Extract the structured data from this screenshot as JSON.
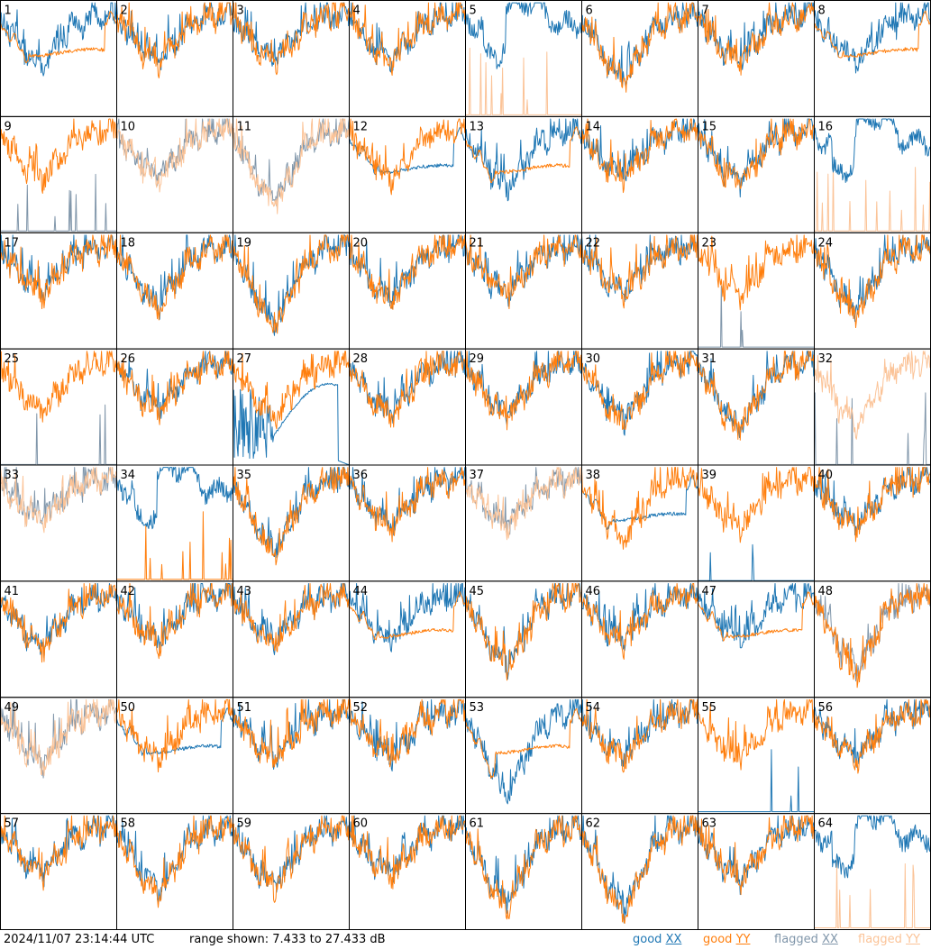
{
  "chart_data": {
    "type": "line",
    "description_units": "dB",
    "grid": {
      "rows": 8,
      "cols": 8
    },
    "ylim": [
      7.433,
      27.433
    ],
    "colors": {
      "good_xx": "#1f77b4",
      "good_yy": "#ff7f0e",
      "flagged_xx": "#8096aa",
      "flagged_yy": "#fbc397"
    },
    "panels": [
      {
        "label": "1",
        "xx": "good",
        "yy": "good",
        "xx_style": "normal",
        "yy_style": "smooth",
        "dip": 0.35
      },
      {
        "label": "2",
        "xx": "good",
        "yy": "good",
        "xx_style": "normal",
        "yy_style": "normal",
        "dip": 0.3
      },
      {
        "label": "3",
        "xx": "good",
        "yy": "good",
        "xx_style": "normal",
        "yy_style": "normal",
        "dip": 0.3
      },
      {
        "label": "4",
        "xx": "good",
        "yy": "good",
        "xx_style": "normal",
        "yy_style": "normal",
        "dip": 0.3
      },
      {
        "label": "5",
        "xx": "good",
        "yy": "flagged",
        "xx_style": "high",
        "yy_style": "spikes",
        "dip": 0.25
      },
      {
        "label": "6",
        "xx": "good",
        "yy": "good",
        "xx_style": "normal",
        "yy_style": "normal",
        "dip": 0.45
      },
      {
        "label": "7",
        "xx": "good",
        "yy": "good",
        "xx_style": "normal",
        "yy_style": "normal",
        "dip": 0.3
      },
      {
        "label": "8",
        "xx": "good",
        "yy": "good",
        "xx_style": "normal",
        "yy_style": "smooth",
        "dip": 0.3
      },
      {
        "label": "9",
        "xx": "flagged",
        "yy": "good",
        "xx_style": "spikes",
        "yy_style": "normal",
        "dip": 0.3
      },
      {
        "label": "10",
        "xx": "flagged",
        "yy": "flagged",
        "xx_style": "normal",
        "yy_style": "normal",
        "dip": 0.3
      },
      {
        "label": "11",
        "xx": "flagged",
        "yy": "flagged",
        "xx_style": "normal",
        "yy_style": "normal",
        "dip": 0.5
      },
      {
        "label": "12",
        "xx": "good",
        "yy": "good",
        "xx_style": "smooth",
        "yy_style": "normal",
        "dip": 0.3
      },
      {
        "label": "13",
        "xx": "good",
        "yy": "good",
        "xx_style": "normal",
        "yy_style": "smooth",
        "dip": 0.4
      },
      {
        "label": "14",
        "xx": "good",
        "yy": "good",
        "xx_style": "normal",
        "yy_style": "normal",
        "dip": 0.3
      },
      {
        "label": "15",
        "xx": "good",
        "yy": "good",
        "xx_style": "normal",
        "yy_style": "normal",
        "dip": 0.35
      },
      {
        "label": "16",
        "xx": "good",
        "yy": "flagged",
        "xx_style": "high",
        "yy_style": "spikes",
        "dip": 0.25
      },
      {
        "label": "17",
        "xx": "good",
        "yy": "good",
        "xx_style": "normal",
        "yy_style": "normal",
        "dip": 0.3
      },
      {
        "label": "18",
        "xx": "good",
        "yy": "good",
        "xx_style": "normal",
        "yy_style": "normal",
        "dip": 0.4
      },
      {
        "label": "19",
        "xx": "good",
        "yy": "good",
        "xx_style": "normal",
        "yy_style": "normal",
        "dip": 0.55
      },
      {
        "label": "20",
        "xx": "good",
        "yy": "good",
        "xx_style": "normal",
        "yy_style": "normal",
        "dip": 0.35
      },
      {
        "label": "21",
        "xx": "good",
        "yy": "good",
        "xx_style": "normal",
        "yy_style": "normal",
        "dip": 0.3
      },
      {
        "label": "22",
        "xx": "good",
        "yy": "good",
        "xx_style": "normal",
        "yy_style": "normal",
        "dip": 0.3
      },
      {
        "label": "23",
        "xx": "flagged",
        "yy": "good",
        "xx_style": "spikes",
        "yy_style": "normal",
        "dip": 0.3
      },
      {
        "label": "24",
        "xx": "good",
        "yy": "good",
        "xx_style": "normal",
        "yy_style": "normal",
        "dip": 0.45
      },
      {
        "label": "25",
        "xx": "flagged",
        "yy": "good",
        "xx_style": "flat",
        "yy_style": "normal",
        "dip": 0.3
      },
      {
        "label": "26",
        "xx": "good",
        "yy": "good",
        "xx_style": "normal",
        "yy_style": "normal",
        "dip": 0.3
      },
      {
        "label": "27",
        "xx": "good",
        "yy": "good",
        "xx_style": "broken",
        "yy_style": "normal",
        "dip": 0.35
      },
      {
        "label": "28",
        "xx": "good",
        "yy": "good",
        "xx_style": "normal",
        "yy_style": "normal",
        "dip": 0.35
      },
      {
        "label": "29",
        "xx": "good",
        "yy": "good",
        "xx_style": "normal",
        "yy_style": "normal",
        "dip": 0.35
      },
      {
        "label": "30",
        "xx": "good",
        "yy": "good",
        "xx_style": "normal",
        "yy_style": "normal",
        "dip": 0.4
      },
      {
        "label": "31",
        "xx": "good",
        "yy": "good",
        "xx_style": "normal",
        "yy_style": "normal",
        "dip": 0.45
      },
      {
        "label": "32",
        "xx": "flagged",
        "yy": "flagged",
        "xx_style": "flat",
        "yy_style": "normal",
        "dip": 0.4
      },
      {
        "label": "33",
        "xx": "flagged",
        "yy": "flagged",
        "xx_style": "normal",
        "yy_style": "normal",
        "dip": 0.25
      },
      {
        "label": "34",
        "xx": "good",
        "yy": "good",
        "xx_style": "high",
        "yy_style": "spikes",
        "dip": 0.25
      },
      {
        "label": "35",
        "xx": "good",
        "yy": "good",
        "xx_style": "normal",
        "yy_style": "normal",
        "dip": 0.5
      },
      {
        "label": "36",
        "xx": "good",
        "yy": "good",
        "xx_style": "normal",
        "yy_style": "normal",
        "dip": 0.3
      },
      {
        "label": "37",
        "xx": "flagged",
        "yy": "flagged",
        "xx_style": "normal",
        "yy_style": "normal",
        "dip": 0.3
      },
      {
        "label": "38",
        "xx": "good",
        "yy": "good",
        "xx_style": "smooth",
        "yy_style": "normal",
        "dip": 0.4
      },
      {
        "label": "39",
        "xx": "good",
        "yy": "good",
        "xx_style": "flat",
        "yy_style": "normal",
        "dip": 0.3
      },
      {
        "label": "40",
        "xx": "good",
        "yy": "good",
        "xx_style": "normal",
        "yy_style": "normal",
        "dip": 0.3
      },
      {
        "label": "41",
        "xx": "good",
        "yy": "good",
        "xx_style": "normal",
        "yy_style": "normal",
        "dip": 0.35
      },
      {
        "label": "42",
        "xx": "good",
        "yy": "good",
        "xx_style": "normal",
        "yy_style": "normal",
        "dip": 0.3
      },
      {
        "label": "43",
        "xx": "good",
        "yy": "good",
        "xx_style": "normal",
        "yy_style": "normal",
        "dip": 0.3
      },
      {
        "label": "44",
        "xx": "good",
        "yy": "good",
        "xx_style": "normal",
        "yy_style": "smooth",
        "dip": 0.3
      },
      {
        "label": "45",
        "xx": "good",
        "yy": "good",
        "xx_style": "normal",
        "yy_style": "normal",
        "dip": 0.5
      },
      {
        "label": "46",
        "xx": "good",
        "yy": "good",
        "xx_style": "normal",
        "yy_style": "normal",
        "dip": 0.3
      },
      {
        "label": "47",
        "xx": "good",
        "yy": "good",
        "xx_style": "normal",
        "yy_style": "smooth",
        "dip": 0.3
      },
      {
        "label": "48",
        "xx": "flagged",
        "yy": "good",
        "xx_style": "normal",
        "yy_style": "normal",
        "dip": 0.55
      },
      {
        "label": "49",
        "xx": "flagged",
        "yy": "flagged",
        "xx_style": "normal",
        "yy_style": "normal",
        "dip": 0.35
      },
      {
        "label": "50",
        "xx": "good",
        "yy": "good",
        "xx_style": "smooth",
        "yy_style": "normal",
        "dip": 0.3
      },
      {
        "label": "51",
        "xx": "good",
        "yy": "good",
        "xx_style": "normal",
        "yy_style": "normal",
        "dip": 0.3
      },
      {
        "label": "52",
        "xx": "good",
        "yy": "good",
        "xx_style": "normal",
        "yy_style": "normal",
        "dip": 0.3
      },
      {
        "label": "53",
        "xx": "good",
        "yy": "good",
        "xx_style": "normal",
        "yy_style": "smooth",
        "dip": 0.6
      },
      {
        "label": "54",
        "xx": "good",
        "yy": "good",
        "xx_style": "normal",
        "yy_style": "normal",
        "dip": 0.3
      },
      {
        "label": "55",
        "xx": "good",
        "yy": "good",
        "xx_style": "spikes",
        "yy_style": "normal",
        "dip": 0.3
      },
      {
        "label": "56",
        "xx": "good",
        "yy": "good",
        "xx_style": "normal",
        "yy_style": "normal",
        "dip": 0.3
      },
      {
        "label": "57",
        "xx": "good",
        "yy": "good",
        "xx_style": "normal",
        "yy_style": "normal",
        "dip": 0.3
      },
      {
        "label": "58",
        "xx": "good",
        "yy": "good",
        "xx_style": "normal",
        "yy_style": "normal",
        "dip": 0.45
      },
      {
        "label": "59",
        "xx": "good",
        "yy": "good",
        "xx_style": "normal",
        "yy_style": "normal",
        "dip": 0.4
      },
      {
        "label": "60",
        "xx": "good",
        "yy": "good",
        "xx_style": "normal",
        "yy_style": "normal",
        "dip": 0.3
      },
      {
        "label": "61",
        "xx": "good",
        "yy": "good",
        "xx_style": "normal",
        "yy_style": "normal",
        "dip": 0.55
      },
      {
        "label": "62",
        "xx": "good",
        "yy": "good",
        "xx_style": "normal",
        "yy_style": "normal",
        "dip": 0.6
      },
      {
        "label": "63",
        "xx": "good",
        "yy": "good",
        "xx_style": "normal",
        "yy_style": "normal",
        "dip": 0.35
      },
      {
        "label": "64",
        "xx": "good",
        "yy": "flagged",
        "xx_style": "high",
        "yy_style": "spikes",
        "dip": 0.25
      }
    ]
  },
  "footer": {
    "timestamp": "2024/11/07 23:14:44 UTC",
    "range_text": "range shown: 7.433 to 27.433 dB",
    "legend": [
      {
        "word": "good",
        "pol": "XX",
        "color": "#1f77b4"
      },
      {
        "word": "good",
        "pol": "YY",
        "color": "#ff7f0e"
      },
      {
        "word": "flagged",
        "pol": "XX",
        "color": "#8096aa"
      },
      {
        "word": "flagged",
        "pol": "YY",
        "color": "#fbc397"
      }
    ]
  }
}
